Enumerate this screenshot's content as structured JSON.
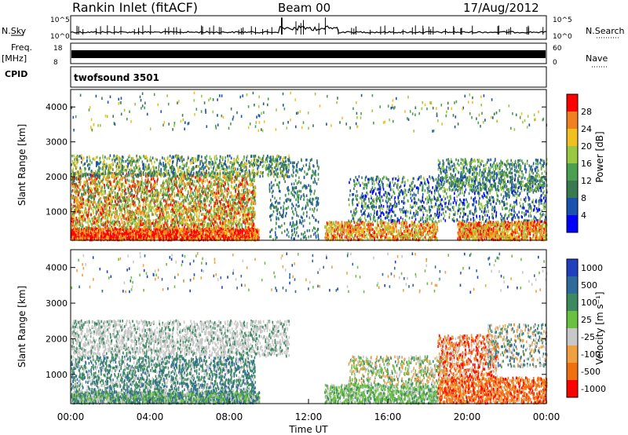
{
  "header": {
    "station": "Rankin Inlet (fitACF)",
    "beam": "Beam 00",
    "date": "17/Aug/2012"
  },
  "left_labels": {
    "nsky": "N.Sky",
    "freq": "Freq.",
    "freq_unit": "[MHz]",
    "cpid": "CPID"
  },
  "right_labels": {
    "nsearch": "N.Search",
    "nave": "Nave"
  },
  "cpid_text": "twofsound 3501",
  "chart_data": [
    {
      "type": "line",
      "title": "N.Sky / N.Search",
      "y_ticks_left": [
        "10^5",
        "10^0"
      ],
      "y_ticks_right": [
        "10^5",
        "10^0"
      ],
      "note": "noise level time series, mostly flat near 10^1 with spikes around 11:00-13:00 UT"
    },
    {
      "type": "line",
      "title": "Freq. / Nave",
      "y_ticks_left": [
        "18",
        "8"
      ],
      "y_ticks_right": [
        "60",
        "0"
      ]
    },
    {
      "type": "heatmap",
      "ylabel": "Slant Range [km]",
      "colorbar_label": "Power [dB]",
      "colorbar_ticks": [
        "28",
        "24",
        "20",
        "16",
        "12",
        "8",
        "4"
      ],
      "y_ticks": [
        "4000",
        "3000",
        "2000",
        "1000"
      ],
      "ylim": [
        180,
        4500
      ],
      "colors": [
        "#0000ff",
        "#1a52b0",
        "#3a7a50",
        "#4aa050",
        "#9ac840",
        "#f0c020",
        "#f08020",
        "#ff0000"
      ],
      "x_range_hours": [
        0,
        24
      ]
    },
    {
      "type": "heatmap",
      "ylabel": "Slant Range [km]",
      "xlabel": "Time UT",
      "colorbar_label": "Velocity [m s⁻¹]",
      "colorbar_ticks": [
        "1000",
        "500",
        "100",
        "25",
        "-25",
        "-100",
        "-500",
        "-1000"
      ],
      "y_ticks": [
        "4000",
        "3000",
        "2000",
        "1000"
      ],
      "x_ticks": [
        "00:00",
        "04:00",
        "08:00",
        "12:00",
        "16:00",
        "20:00",
        "00:00"
      ],
      "ylim": [
        180,
        4500
      ],
      "colors": [
        "#2040c0",
        "#2e6a9a",
        "#3e8a60",
        "#6ac040",
        "#c8c8c8",
        "#f0a040",
        "#f07010",
        "#ff0000"
      ],
      "x_range_hours": [
        0,
        24
      ]
    }
  ]
}
